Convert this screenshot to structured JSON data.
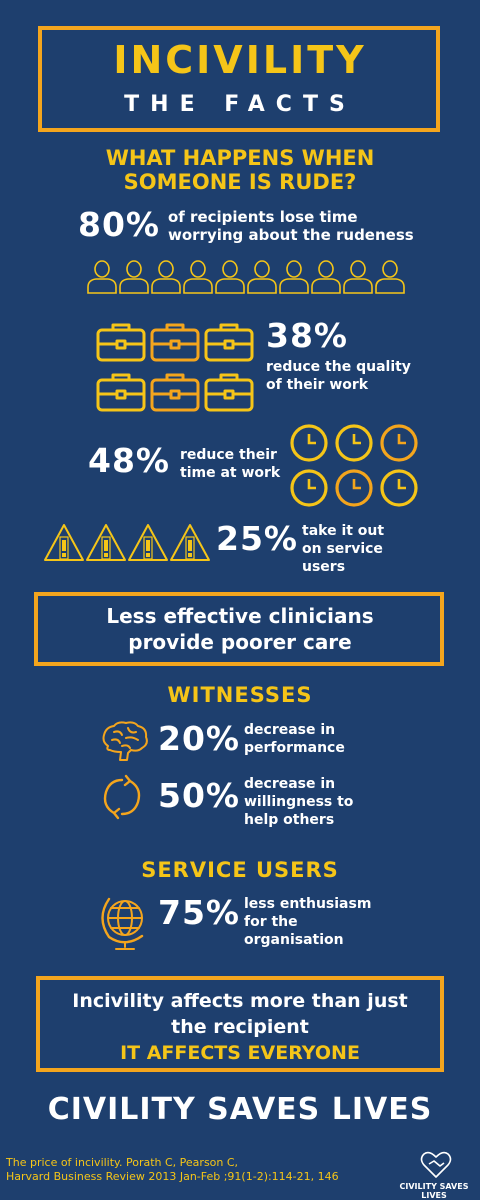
{
  "header": {
    "title": "INCIVILITY",
    "subtitle": "THE FACTS"
  },
  "question": {
    "line1": "WHAT HAPPENS WHEN",
    "line2": "SOMEONE IS RUDE?"
  },
  "stats": {
    "s80": {
      "value": "80%",
      "line1": "of recipients lose time",
      "line2": "worrying about the rudeness"
    },
    "s38": {
      "value": "38%",
      "line1": "reduce the quality",
      "line2": "of their work"
    },
    "s48": {
      "value": "48%",
      "line1": "reduce their",
      "line2": "time at work"
    },
    "s25": {
      "value": "25%",
      "line1": "take it out",
      "line2": "on service",
      "line3": "users"
    }
  },
  "box1": {
    "line1": "Less effective clinicians",
    "line2": "provide poorer care"
  },
  "witnesses": {
    "heading": "WITNESSES",
    "s20": {
      "value": "20%",
      "line1": "decrease in",
      "line2": "performance"
    },
    "s50": {
      "value": "50%",
      "line1": "decrease in",
      "line2": "willingness to",
      "line3": "help others"
    }
  },
  "service_users": {
    "heading": "SERVICE USERS",
    "s75": {
      "value": "75%",
      "line1": "less enthusiasm",
      "line2": "for the",
      "line3": "organisation"
    }
  },
  "box2": {
    "line1": "Incivility affects more than just",
    "line2": "the recipient",
    "line3": "IT AFFECTS EVERYONE"
  },
  "footer": {
    "title": "CIVILITY SAVES LIVES",
    "citation1": "The price of incivility. Porath C, Pearson C,",
    "citation2": "Harvard Business Review 2013 Jan-Feb ;91(1-2):114-21, 146",
    "logo_line1": "CIVILITY SAVES",
    "logo_line2": "LIVES"
  },
  "icons": {
    "person": "person-outline-icon",
    "briefcase": "briefcase-icon",
    "clock": "clock-icon",
    "warning": "warning-triangle-icon",
    "brain": "brain-icon",
    "refresh": "refresh-arrows-icon",
    "globe": "globe-icon",
    "logo": "heart-handshake-logo-icon"
  },
  "colors": {
    "background": "#1e3f6e",
    "accent_orange": "#f4a51d",
    "accent_yellow": "#f5c518",
    "text": "#ffffff"
  }
}
